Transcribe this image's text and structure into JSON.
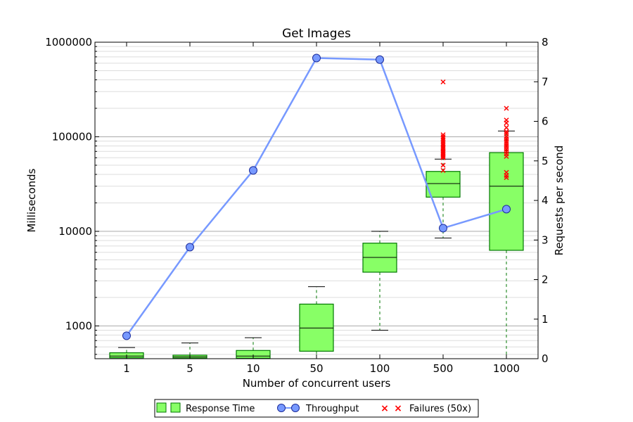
{
  "chart_data": {
    "type": "box+line",
    "title": "Get Images",
    "xlabel": "Number of concurrent users",
    "ylabel_left": "Milliseconds",
    "ylabel_right": "Requests per second",
    "categories": [
      "1",
      "5",
      "10",
      "50",
      "100",
      "500",
      "1000"
    ],
    "left_axis": {
      "scale": "log",
      "range": [
        450,
        1000000
      ],
      "ticks": [
        1000,
        10000,
        100000,
        1000000
      ],
      "tick_labels": [
        "1000",
        "10000",
        "100000",
        "1000000"
      ]
    },
    "right_axis": {
      "scale": "linear",
      "range": [
        0,
        8
      ],
      "ticks": [
        0,
        1,
        2,
        3,
        4,
        5,
        6,
        7,
        8
      ],
      "tick_labels": [
        "0",
        "1",
        "2",
        "3",
        "4",
        "5",
        "6",
        "7",
        "8"
      ]
    },
    "response_time": [
      {
        "category": "1",
        "whisker_low": 450,
        "q1": 460,
        "median": 480,
        "q3": 520,
        "whisker_high": 590
      },
      {
        "category": "5",
        "whisker_low": 450,
        "q1": 455,
        "median": 470,
        "q3": 490,
        "whisker_high": 660
      },
      {
        "category": "10",
        "whisker_low": 450,
        "q1": 455,
        "median": 480,
        "q3": 550,
        "whisker_high": 750
      },
      {
        "category": "50",
        "whisker_low": 450,
        "q1": 540,
        "median": 950,
        "q3": 1700,
        "whisker_high": 2600
      },
      {
        "category": "100",
        "whisker_low": 900,
        "q1": 3700,
        "median": 5300,
        "q3": 7500,
        "whisker_high": 10000
      },
      {
        "category": "500",
        "whisker_low": 8500,
        "q1": 23000,
        "median": 32000,
        "q3": 43000,
        "whisker_high": 58000
      },
      {
        "category": "1000",
        "whisker_low": 450,
        "q1": 6300,
        "median": 30000,
        "q3": 68000,
        "whisker_high": 115000
      }
    ],
    "outliers": [
      {
        "category": "500",
        "values": [
          44000,
          50000,
          60000,
          62000,
          64000,
          66000,
          68000,
          70000,
          72000,
          75000,
          78000,
          81000,
          84000,
          88000,
          92000,
          96000,
          100000,
          105000,
          380000
        ]
      },
      {
        "category": "1000",
        "values": [
          37000,
          39000,
          42000,
          62000,
          66000,
          70000,
          74000,
          78000,
          82000,
          86000,
          90000,
          95000,
          100000,
          108000,
          113000,
          125000,
          140000,
          150000,
          200000
        ]
      }
    ],
    "throughput": {
      "name": "Throughput",
      "values": [
        0.58,
        2.82,
        4.76,
        7.6,
        7.56,
        3.3,
        3.78
      ]
    },
    "legend": {
      "placement": "bottom-center",
      "entries": [
        "Response Time",
        "Throughput",
        "Failures (50x)"
      ]
    },
    "colors": {
      "box_fill": "#88ff66",
      "box_edge": "#007700",
      "whisker": "#007700",
      "line": "#7799ff",
      "marker_edge": "#1a2a99",
      "outlier": "#ff0000",
      "grid": "#aaaaaa"
    },
    "grid": true
  }
}
